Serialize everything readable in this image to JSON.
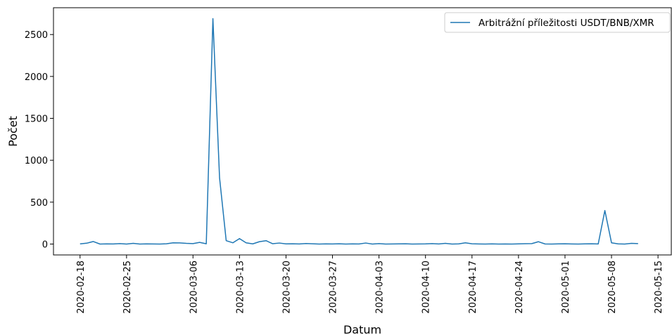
{
  "chart_data": {
    "type": "line",
    "title": "",
    "xlabel": "Datum",
    "ylabel": "Počet",
    "x_start": "2020-02-18",
    "x_ticks": [
      "2020-02-18",
      "2020-02-25",
      "2020-03-06",
      "2020-03-13",
      "2020-03-20",
      "2020-03-27",
      "2020-04-03",
      "2020-04-10",
      "2020-04-17",
      "2020-04-24",
      "2020-05-01",
      "2020-05-08",
      "2020-05-15"
    ],
    "y_ticks": [
      0,
      500,
      1000,
      1500,
      2000,
      2500
    ],
    "xlim": [
      "2020-02-14",
      "2020-05-17"
    ],
    "ylim": [
      -130,
      2820
    ],
    "grid": false,
    "legend_position": "top-right",
    "color": "#1f77b4",
    "series": [
      {
        "name": "Arbitrážní příležitosti USDT/BNB/XMR",
        "points": [
          [
            "2020-02-18",
            2
          ],
          [
            "2020-02-19",
            10
          ],
          [
            "2020-02-20",
            30
          ],
          [
            "2020-02-21",
            0
          ],
          [
            "2020-02-22",
            2
          ],
          [
            "2020-02-23",
            1
          ],
          [
            "2020-02-24",
            5
          ],
          [
            "2020-02-25",
            0
          ],
          [
            "2020-02-26",
            8
          ],
          [
            "2020-02-27",
            0
          ],
          [
            "2020-02-28",
            2
          ],
          [
            "2020-02-29",
            1
          ],
          [
            "2020-03-01",
            0
          ],
          [
            "2020-03-02",
            3
          ],
          [
            "2020-03-03",
            15
          ],
          [
            "2020-03-04",
            14
          ],
          [
            "2020-03-05",
            8
          ],
          [
            "2020-03-06",
            5
          ],
          [
            "2020-03-07",
            20
          ],
          [
            "2020-03-08",
            3
          ],
          [
            "2020-03-09",
            2690
          ],
          [
            "2020-03-10",
            790
          ],
          [
            "2020-03-11",
            40
          ],
          [
            "2020-03-12",
            15
          ],
          [
            "2020-03-13",
            65
          ],
          [
            "2020-03-14",
            15
          ],
          [
            "2020-03-15",
            2
          ],
          [
            "2020-03-16",
            28
          ],
          [
            "2020-03-17",
            40
          ],
          [
            "2020-03-18",
            4
          ],
          [
            "2020-03-19",
            12
          ],
          [
            "2020-03-20",
            2
          ],
          [
            "2020-03-21",
            3
          ],
          [
            "2020-03-22",
            1
          ],
          [
            "2020-03-23",
            6
          ],
          [
            "2020-03-24",
            3
          ],
          [
            "2020-03-25",
            0
          ],
          [
            "2020-03-26",
            2
          ],
          [
            "2020-03-27",
            1
          ],
          [
            "2020-03-28",
            3
          ],
          [
            "2020-03-29",
            0
          ],
          [
            "2020-03-30",
            2
          ],
          [
            "2020-03-31",
            1
          ],
          [
            "2020-04-01",
            12
          ],
          [
            "2020-04-02",
            0
          ],
          [
            "2020-04-03",
            5
          ],
          [
            "2020-04-04",
            0
          ],
          [
            "2020-04-05",
            1
          ],
          [
            "2020-04-06",
            2
          ],
          [
            "2020-04-07",
            3
          ],
          [
            "2020-04-08",
            0
          ],
          [
            "2020-04-09",
            1
          ],
          [
            "2020-04-10",
            2
          ],
          [
            "2020-04-11",
            5
          ],
          [
            "2020-04-12",
            1
          ],
          [
            "2020-04-13",
            8
          ],
          [
            "2020-04-14",
            0
          ],
          [
            "2020-04-15",
            2
          ],
          [
            "2020-04-16",
            15
          ],
          [
            "2020-04-17",
            3
          ],
          [
            "2020-04-18",
            1
          ],
          [
            "2020-04-19",
            0
          ],
          [
            "2020-04-20",
            2
          ],
          [
            "2020-04-21",
            0
          ],
          [
            "2020-04-22",
            1
          ],
          [
            "2020-04-23",
            0
          ],
          [
            "2020-04-24",
            2
          ],
          [
            "2020-04-25",
            4
          ],
          [
            "2020-04-26",
            5
          ],
          [
            "2020-04-27",
            28
          ],
          [
            "2020-04-28",
            1
          ],
          [
            "2020-04-29",
            0
          ],
          [
            "2020-04-30",
            2
          ],
          [
            "2020-05-01",
            3
          ],
          [
            "2020-05-02",
            1
          ],
          [
            "2020-05-03",
            0
          ],
          [
            "2020-05-04",
            2
          ],
          [
            "2020-05-05",
            3
          ],
          [
            "2020-05-06",
            1
          ],
          [
            "2020-05-07",
            400
          ],
          [
            "2020-05-08",
            15
          ],
          [
            "2020-05-09",
            2
          ],
          [
            "2020-05-10",
            0
          ],
          [
            "2020-05-11",
            8
          ],
          [
            "2020-05-12",
            5
          ]
        ]
      }
    ]
  }
}
